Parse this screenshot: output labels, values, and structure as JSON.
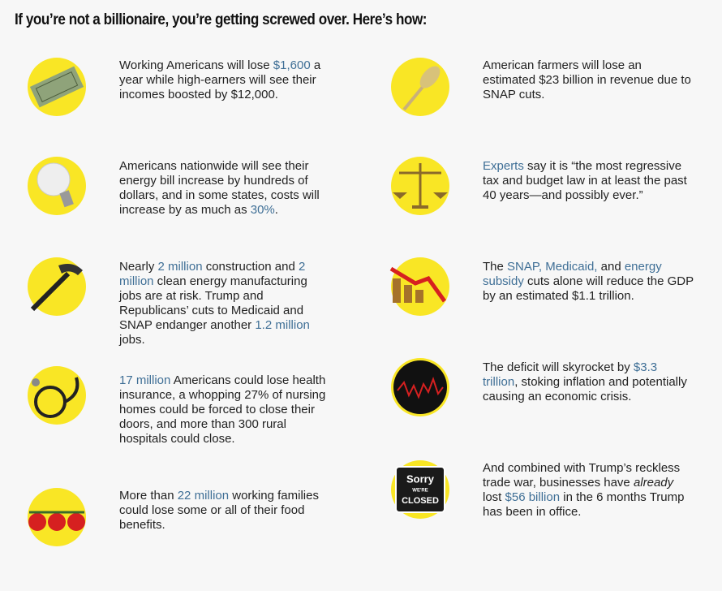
{
  "title": "If you’re not a billionaire, you’re getting screwed over. Here’s how:",
  "items": [
    {
      "segments": [
        {
          "text": "Working Americans will lose "
        },
        {
          "text": "$1,600",
          "style": "link"
        },
        {
          "text": " a year while high-earners will see their incomes boosted by $12,000."
        }
      ]
    },
    {
      "segments": [
        {
          "text": "American farmers will lose an estimated $23 billion in revenue due to SNAP cuts."
        }
      ]
    },
    {
      "segments": [
        {
          "text": "Americans nationwide will see their energy bill increase by hundreds of dollars, and in some states, costs will increase by as much as "
        },
        {
          "text": "30%",
          "style": "link"
        },
        {
          "text": "."
        }
      ]
    },
    {
      "segments": [
        {
          "text": "Experts",
          "style": "link"
        },
        {
          "text": " say it is “the most regressive tax and budget law in at least the past 40 years—and possibly ever.”"
        }
      ]
    },
    {
      "segments": [
        {
          "text": "Nearly "
        },
        {
          "text": "2 million",
          "style": "link"
        },
        {
          "text": " construction and "
        },
        {
          "text": "2 million",
          "style": "link"
        },
        {
          "text": " clean energy manufacturing jobs are at risk. Trump and Republicans’ cuts to Medicaid and SNAP endanger another "
        },
        {
          "text": "1.2 million",
          "style": "link"
        },
        {
          "text": " jobs."
        }
      ]
    },
    {
      "segments": [
        {
          "text": "The "
        },
        {
          "text": "SNAP, Medicaid,",
          "style": "link"
        },
        {
          "text": " and "
        },
        {
          "text": "energy subsidy",
          "style": "link"
        },
        {
          "text": " cuts alone will reduce the GDP by an estimated $1.1 trillion."
        }
      ]
    },
    {
      "segments": [
        {
          "text": "17 million",
          "style": "link"
        },
        {
          "text": " Americans could lose health insurance, a whopping 27% of nursing homes could be forced to close their doors, and more than 300 rural hospitals could close."
        }
      ]
    },
    {
      "segments": [
        {
          "text": "The deficit will skyrocket by "
        },
        {
          "text": "$3.3 trillion",
          "style": "link"
        },
        {
          "text": ", stoking inflation and potentially causing an economic crisis."
        }
      ]
    },
    {
      "segments": [
        {
          "text": "More than "
        },
        {
          "text": "22 million",
          "style": "link"
        },
        {
          "text": " working families could lose some or all of their food benefits."
        }
      ]
    },
    {
      "segments": [
        {
          "text": "And combined with Trump’s reckless trade war, businesses have "
        },
        {
          "text": "already",
          "style": "italic"
        },
        {
          "text": " lost "
        },
        {
          "text": "$56 billion",
          "style": "link"
        },
        {
          "text": " in the 6 months Trump has been in office."
        }
      ],
      "icon_text": [
        "Sorry",
        "WE'RE",
        "CLOSED"
      ]
    }
  ]
}
